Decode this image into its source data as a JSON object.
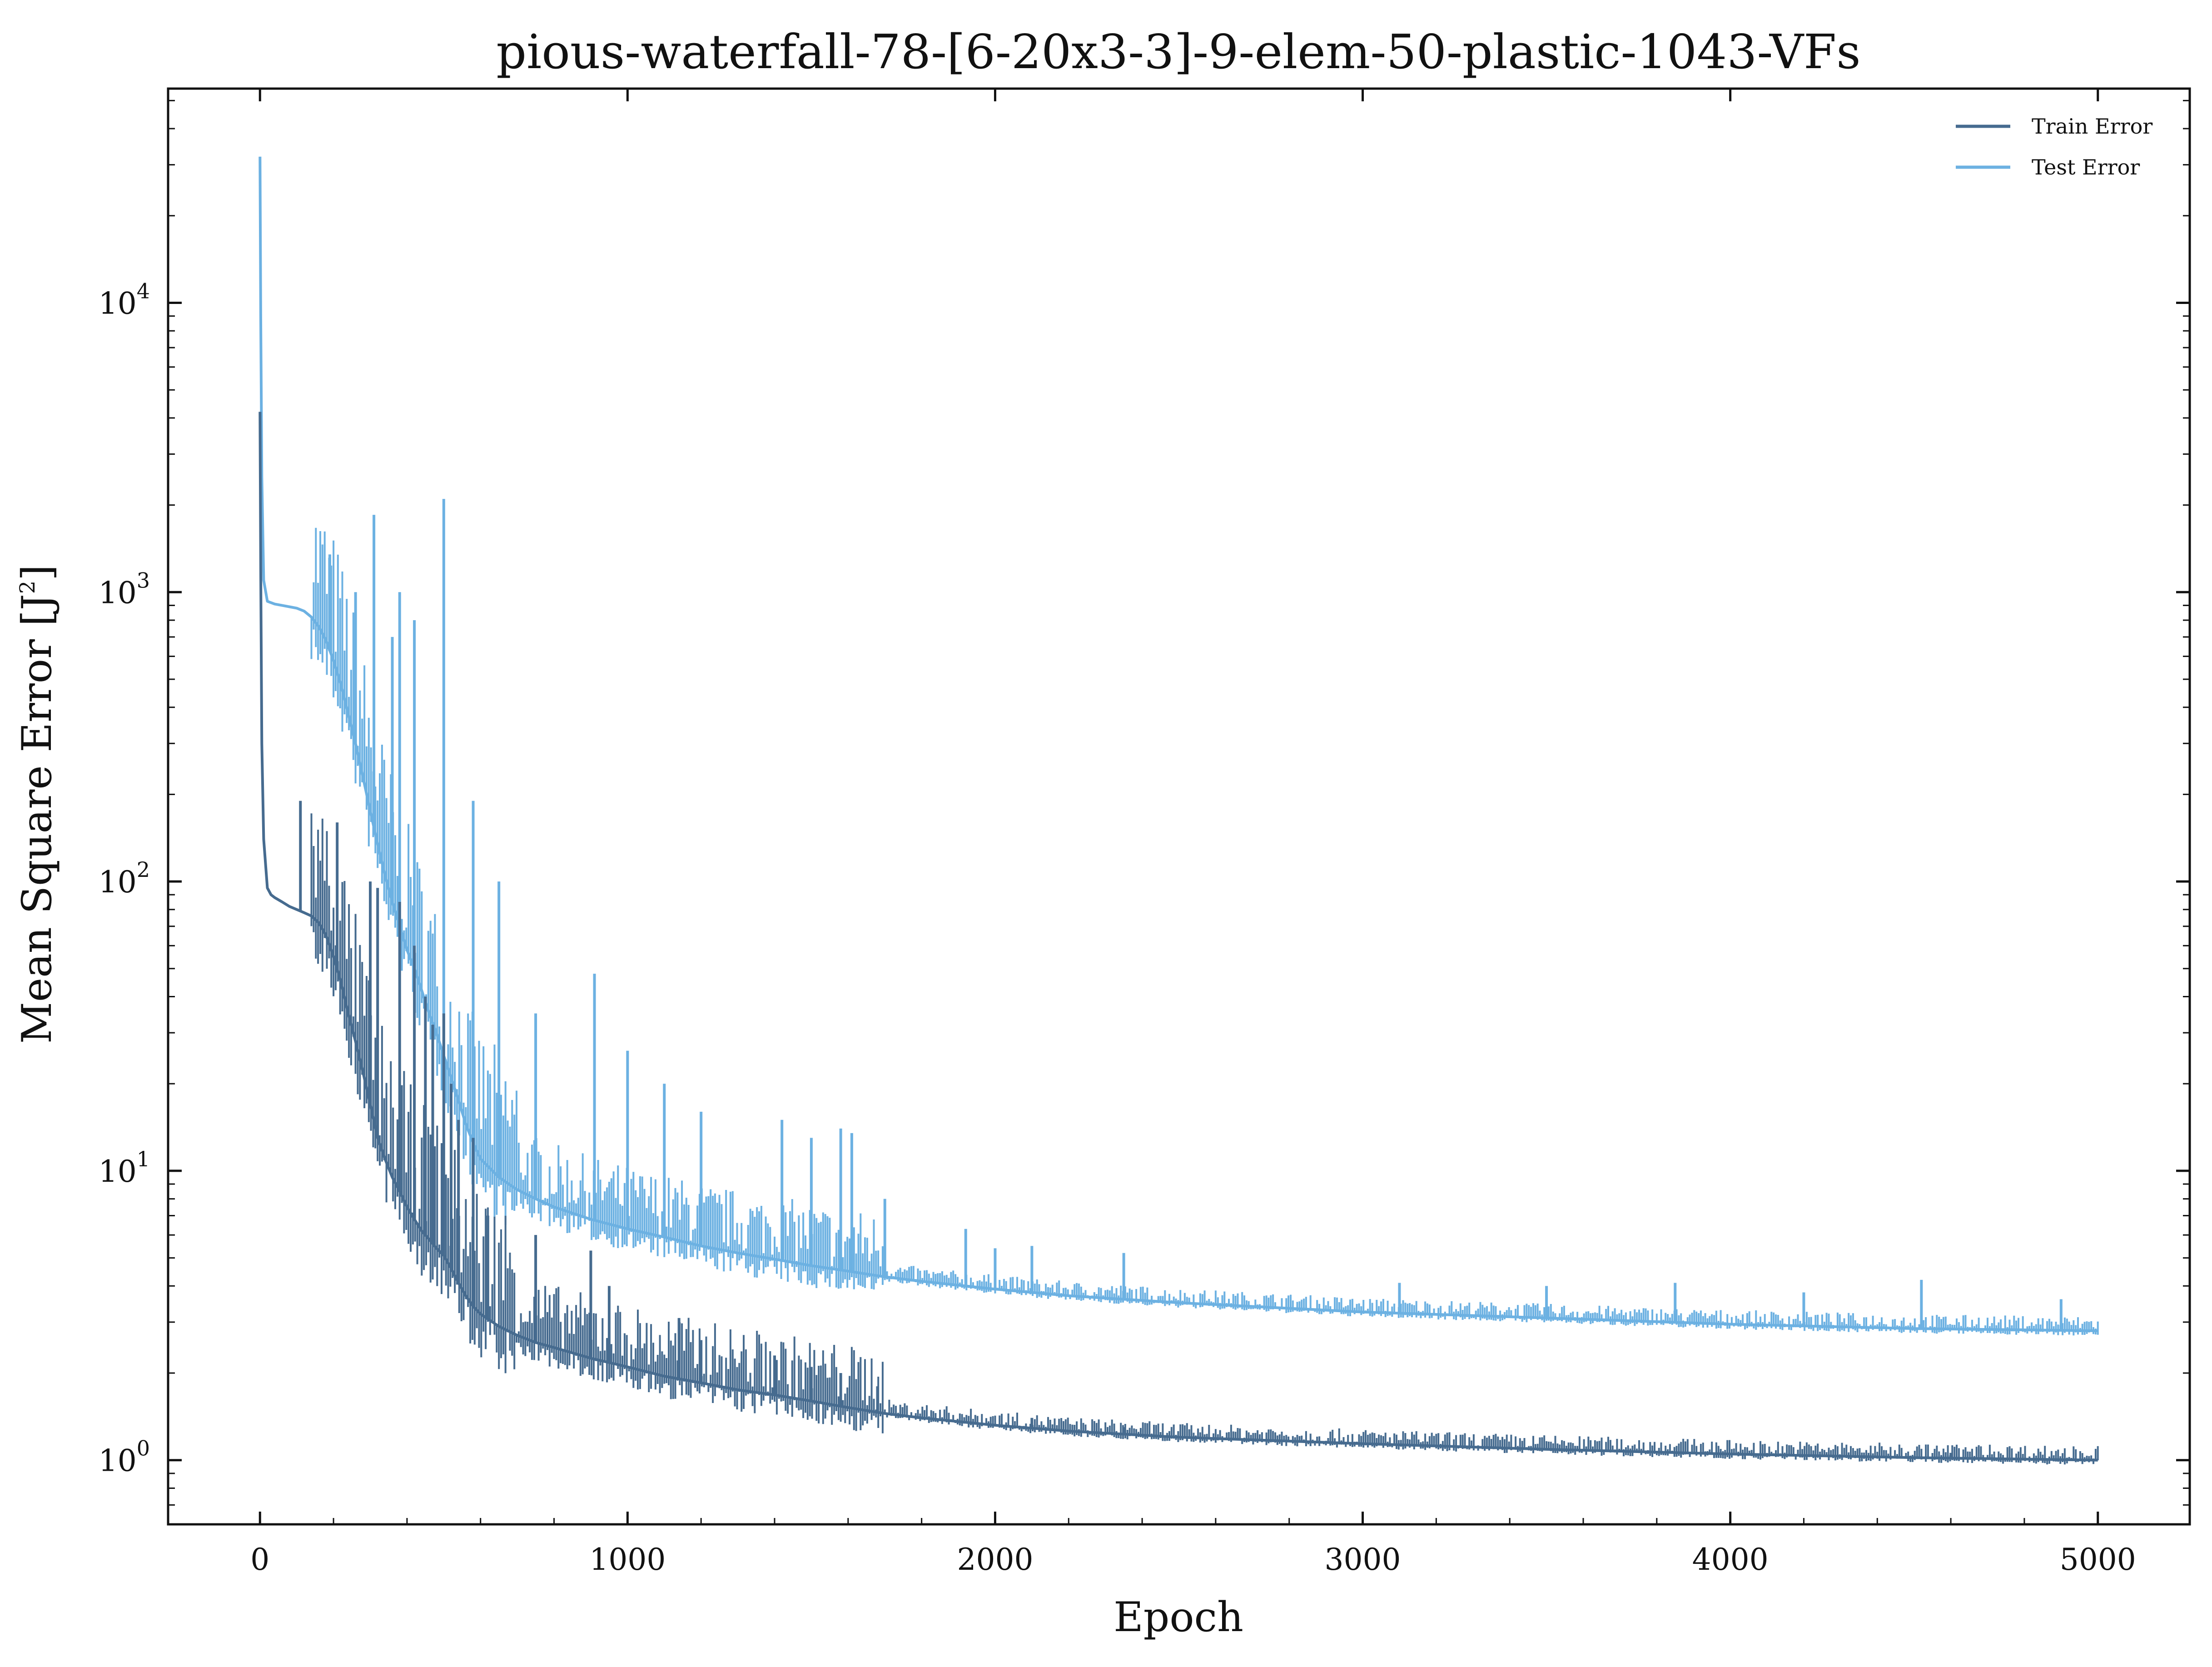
{
  "chart_data": {
    "type": "line",
    "title": "pious-waterfall-78-[6-20x3-3]-9-elem-50-plastic-1043-VFs",
    "xlabel": "Epoch",
    "ylabel": "Mean Square Error [J",
    "ylabel_superscript": "2",
    "ylabel_suffix": "]",
    "xlim": [
      -250,
      5250
    ],
    "ylim": [
      0.6,
      55000
    ],
    "yscale": "log",
    "grid": false,
    "legend_position": "top-right",
    "x_ticks": [
      {
        "value": 0,
        "label": "0"
      },
      {
        "value": 1000,
        "label": "1000"
      },
      {
        "value": 2000,
        "label": "2000"
      },
      {
        "value": 3000,
        "label": "3000"
      },
      {
        "value": 4000,
        "label": "4000"
      },
      {
        "value": 5000,
        "label": "5000"
      }
    ],
    "y_ticks": [
      {
        "value": 1,
        "base": "10",
        "exp": "0"
      },
      {
        "value": 10,
        "base": "10",
        "exp": "1"
      },
      {
        "value": 100,
        "base": "10",
        "exp": "2"
      },
      {
        "value": 1000,
        "base": "10",
        "exp": "3"
      },
      {
        "value": 10000,
        "base": "10",
        "exp": "4"
      }
    ],
    "series": [
      {
        "name": "Train Error",
        "color": "#466b8f",
        "x": [
          0,
          2,
          5,
          10,
          20,
          30,
          40,
          60,
          80,
          100,
          110,
          120,
          140,
          160,
          180,
          200,
          220,
          240,
          260,
          280,
          300,
          320,
          340,
          360,
          380,
          400,
          420,
          440,
          460,
          480,
          500,
          520,
          540,
          560,
          580,
          600,
          650,
          700,
          750,
          800,
          900,
          1000,
          1100,
          1200,
          1300,
          1400,
          1500,
          1600,
          1700,
          1800,
          2000,
          2200,
          2500,
          3000,
          3500,
          4000,
          4500,
          5000
        ],
        "y": [
          4200,
          1200,
          300,
          140,
          95,
          90,
          88,
          85,
          82,
          80,
          79,
          78,
          76,
          72,
          65,
          55,
          45,
          35,
          28,
          22,
          17,
          13,
          11,
          9.5,
          8.5,
          7.5,
          6.8,
          6.2,
          5.8,
          5.4,
          5.1,
          4.6,
          4.1,
          3.7,
          3.4,
          3.2,
          2.9,
          2.7,
          2.55,
          2.45,
          2.25,
          2.1,
          1.95,
          1.85,
          1.75,
          1.68,
          1.6,
          1.52,
          1.45,
          1.4,
          1.32,
          1.26,
          1.2,
          1.14,
          1.09,
          1.05,
          1.02,
          1.0
        ]
      },
      {
        "name": "Test Error",
        "color": "#6cb1e2",
        "x": [
          0,
          2,
          5,
          10,
          20,
          40,
          60,
          80,
          100,
          120,
          140,
          160,
          180,
          200,
          220,
          240,
          260,
          280,
          300,
          320,
          340,
          360,
          380,
          400,
          420,
          440,
          460,
          480,
          500,
          520,
          540,
          560,
          580,
          600,
          650,
          700,
          750,
          800,
          900,
          1000,
          1100,
          1200,
          1300,
          1400,
          1500,
          1600,
          1700,
          1800,
          2000,
          2200,
          2500,
          3000,
          3500,
          4000,
          4500,
          5000
        ],
        "y": [
          32000,
          9000,
          2500,
          1100,
          930,
          910,
          900,
          890,
          880,
          860,
          820,
          760,
          680,
          580,
          480,
          380,
          300,
          230,
          175,
          135,
          105,
          85,
          70,
          58,
          50,
          42,
          35,
          30,
          25,
          21,
          17.5,
          14.5,
          12.5,
          11,
          9.5,
          8.6,
          8.0,
          7.5,
          6.8,
          6.3,
          5.9,
          5.5,
          5.2,
          4.95,
          4.7,
          4.5,
          4.3,
          4.15,
          3.9,
          3.7,
          3.5,
          3.25,
          3.1,
          2.95,
          2.85,
          2.8
        ]
      }
    ],
    "spikes": [
      {
        "series": "Train Error",
        "x": [
          110,
          210,
          300,
          320,
          380,
          420,
          450,
          470,
          500,
          520,
          540,
          580,
          620,
          750,
          900,
          950,
          1140,
          1200,
          1400,
          1500,
          1580,
          1680,
          2100,
          2350,
          4600
        ],
        "y": [
          190,
          160,
          100,
          95,
          85,
          60,
          40,
          32,
          35,
          20,
          15,
          13,
          7,
          6,
          5.3,
          4,
          3.1,
          2.6,
          2.3,
          2.1,
          2.0,
          1.8,
          1.4,
          1.3,
          1.06
        ]
      },
      {
        "series": "Test Error",
        "x": [
          190,
          260,
          310,
          360,
          380,
          420,
          500,
          580,
          650,
          750,
          910,
          1000,
          1100,
          1200,
          1420,
          1500,
          1580,
          1610,
          1700,
          1920,
          2000,
          2100,
          2350,
          3100,
          3500,
          3850,
          4200,
          4520,
          4900
        ],
        "y": [
          1350,
          1000,
          1850,
          700,
          1000,
          800,
          2100,
          190,
          100,
          35,
          48,
          26,
          20,
          16,
          15,
          13,
          14,
          13.5,
          8,
          6.3,
          5.4,
          5.5,
          5.2,
          4.1,
          4.0,
          4.1,
          3.8,
          4.2,
          3.6
        ]
      }
    ]
  }
}
